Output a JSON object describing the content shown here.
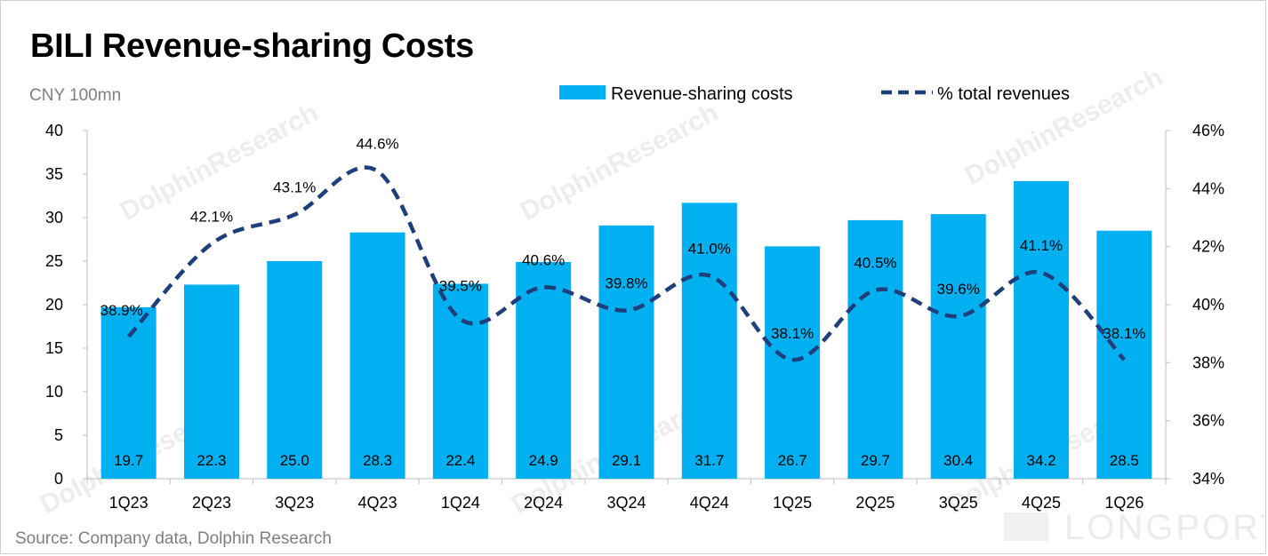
{
  "header": {
    "title": "BILI Revenue-sharing Costs",
    "unit": "CNY 100mn"
  },
  "footer": {
    "source": "Source: Company data, Dolphin Research"
  },
  "watermark": {
    "text": "DolphinResearch",
    "brand": "LONGPORT"
  },
  "chart_data": {
    "type": "bar",
    "categories": [
      "1Q23",
      "2Q23",
      "3Q23",
      "4Q23",
      "1Q24",
      "2Q24",
      "3Q24",
      "4Q24",
      "1Q25",
      "2Q25",
      "3Q25",
      "4Q25",
      "1Q26"
    ],
    "series": [
      {
        "name": "Revenue-sharing costs",
        "type": "bar",
        "axis": "left",
        "color": "#00b0f0",
        "values": [
          19.7,
          22.3,
          25.0,
          28.3,
          22.4,
          24.9,
          29.1,
          31.7,
          26.7,
          29.7,
          30.4,
          34.2,
          28.5
        ],
        "labels": [
          "19.7",
          "22.3",
          "25.0",
          "28.3",
          "22.4",
          "24.9",
          "29.1",
          "31.7",
          "26.7",
          "29.7",
          "30.4",
          "34.2",
          "28.5"
        ]
      },
      {
        "name": "% total revenues",
        "type": "line",
        "style": "dashed",
        "axis": "right",
        "color": "#1f3f7a",
        "values": [
          38.9,
          42.1,
          43.1,
          44.6,
          39.5,
          40.6,
          39.8,
          41.0,
          38.1,
          40.5,
          39.6,
          41.1,
          38.1
        ],
        "labels": [
          "38.9%",
          "42.1%",
          "43.1%",
          "44.6%",
          "39.5%",
          "40.6%",
          "39.8%",
          "41.0%",
          "38.1%",
          "40.5%",
          "39.6%",
          "41.1%",
          "38.1%"
        ]
      }
    ],
    "y_left": {
      "min": 0,
      "max": 40,
      "ticks": [
        "0",
        "5",
        "10",
        "15",
        "20",
        "25",
        "30",
        "35",
        "40"
      ]
    },
    "y_right": {
      "min": 34,
      "max": 46,
      "ticks": [
        "34%",
        "36%",
        "38%",
        "40%",
        "42%",
        "44%",
        "46%"
      ]
    },
    "grid": false,
    "legend_position": "top"
  }
}
